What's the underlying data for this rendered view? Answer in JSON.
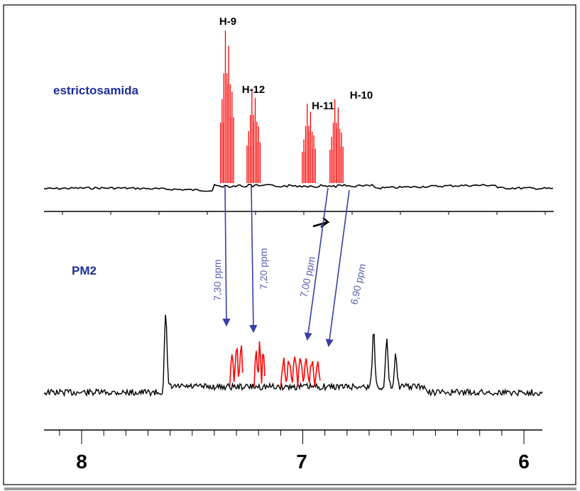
{
  "chart_data": {
    "type": "line",
    "title": "",
    "xlabel": "",
    "ylabel": "",
    "x_axis": {
      "unit": "ppm",
      "reversed": true,
      "range": [
        8.0,
        6.0
      ],
      "tick_labels": [
        "8",
        "7",
        "6"
      ],
      "tick_values": [
        8,
        7,
        6
      ]
    },
    "series": [
      {
        "name": "estrictosamida",
        "color": "#000000",
        "highlight_color": "#ff0000",
        "peaks": [
          {
            "label": "H-9",
            "center": 7.35,
            "height": 1.0,
            "lines": [
              7.365,
              7.35,
              7.335,
              7.32
            ]
          },
          {
            "label": "H-12",
            "center": 7.23,
            "height": 0.62,
            "lines": [
              7.245,
              7.23,
              7.215,
              7.2
            ]
          },
          {
            "label": "H-11",
            "center": 6.98,
            "height": 0.52,
            "lines": [
              6.995,
              6.98,
              6.965,
              6.95
            ]
          },
          {
            "label": "H-10",
            "center": 6.85,
            "height": 0.55,
            "lines": [
              6.87,
              6.855,
              6.84,
              6.825
            ]
          }
        ]
      },
      {
        "name": "PM2",
        "color": "#000000",
        "highlight_color": "#ff0000",
        "highlight_regions": [
          [
            7.33,
            7.27
          ],
          [
            7.22,
            7.17
          ],
          [
            7.1,
            6.92
          ]
        ],
        "other_peaks": [
          7.62,
          6.68,
          6.62,
          6.58
        ]
      }
    ],
    "shift_arrows": [
      {
        "label": "7,30 ppm",
        "from": 7.35,
        "to": 7.3
      },
      {
        "label": "7,20 ppm",
        "from": 7.23,
        "to": 7.2
      },
      {
        "label": "7,00 ppm",
        "from": 6.98,
        "to": 7.0
      },
      {
        "label": "6,90 ppm",
        "from": 6.85,
        "to": 6.9
      }
    ]
  },
  "labels": {
    "top_sample": "estrictosamida",
    "bottom_sample": "PM2",
    "peaks": {
      "h9": "H-9",
      "h12": "H-12",
      "h11": "H-11",
      "h10": "H-10"
    },
    "arrows": {
      "a1": "7,30 ppm",
      "a2": "7,20 ppm",
      "a3": "7,00 ppm",
      "a4": "6,90 ppm"
    },
    "axis": {
      "t8": "8",
      "t7": "7",
      "t6": "6"
    }
  },
  "colors": {
    "trace": "#000000",
    "highlight": "#ff0000",
    "arrow": "#3a3ea8",
    "sample_label": "#1c2e9a"
  }
}
